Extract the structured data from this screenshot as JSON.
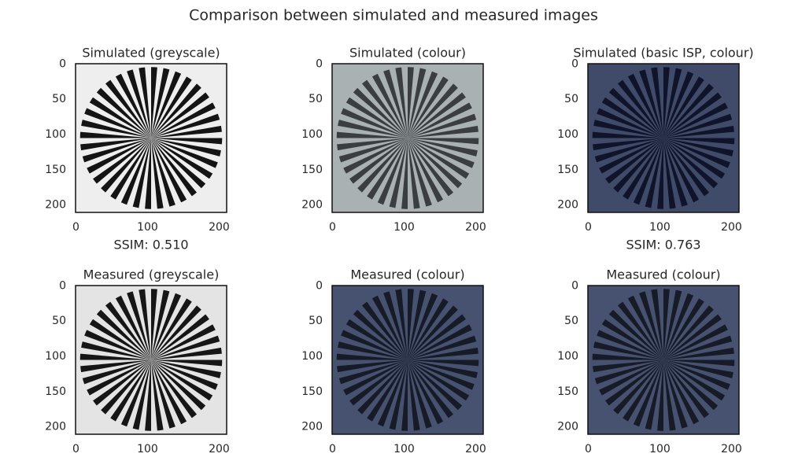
{
  "title": "Comparison between simulated and measured images",
  "chart_data": [
    {
      "type": "image",
      "title": "Simulated (greyscale)",
      "xlabel": "SSIM: 0.510",
      "background": "#eeeeee",
      "color": "#141414",
      "xlim": [
        -0.5,
        210.5
      ],
      "ylim": [
        210.5,
        -0.5
      ],
      "xticks": [
        0,
        100,
        200
      ],
      "yticks": [
        0,
        50,
        100,
        150,
        200
      ]
    },
    {
      "type": "image",
      "title": "Simulated (colour)",
      "background": "#a9b1b3",
      "color": "#3b3e40",
      "xlim": [
        -0.5,
        210.5
      ],
      "ylim": [
        210.5,
        -0.5
      ],
      "xticks": [
        0,
        100,
        200
      ],
      "yticks": [
        0,
        50,
        100,
        150,
        200
      ]
    },
    {
      "type": "image",
      "title": "Simulated (basic ISP, colour)",
      "xlabel": "SSIM: 0.763",
      "background": "#404b69",
      "color": "#10142a",
      "xlim": [
        -0.5,
        210.5
      ],
      "ylim": [
        210.5,
        -0.5
      ],
      "xticks": [
        0,
        100,
        200
      ],
      "yticks": [
        0,
        50,
        100,
        150,
        200
      ]
    },
    {
      "type": "image",
      "title": "Measured (greyscale)",
      "background": "#e4e4e4",
      "color": "#161616",
      "xlim": [
        -0.5,
        210.5
      ],
      "ylim": [
        210.5,
        -0.5
      ],
      "xticks": [
        0,
        100,
        200
      ],
      "yticks": [
        0,
        50,
        100,
        150,
        200
      ]
    },
    {
      "type": "image",
      "title": "Measured (colour)",
      "background": "#46526f",
      "color": "#171b27",
      "xlim": [
        -0.5,
        210.5
      ],
      "ylim": [
        210.5,
        -0.5
      ],
      "xticks": [
        0,
        100,
        200
      ],
      "yticks": [
        0,
        50,
        100,
        150,
        200
      ]
    },
    {
      "type": "image",
      "title": "Measured (colour)",
      "background": "#46526f",
      "color": "#171b27",
      "xlim": [
        -0.5,
        210.5
      ],
      "ylim": [
        210.5,
        -0.5
      ],
      "xticks": [
        0,
        100,
        200
      ],
      "yticks": [
        0,
        50,
        100,
        150,
        200
      ]
    }
  ]
}
